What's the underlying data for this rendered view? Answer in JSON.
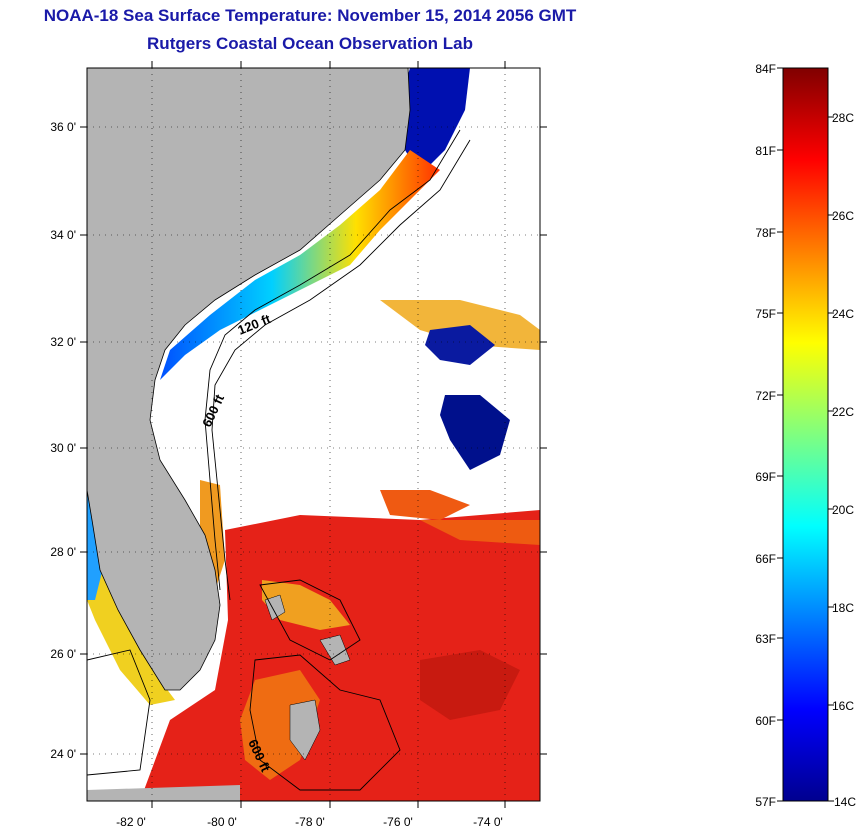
{
  "title": "NOAA-18 Sea Surface Temperature:  November 15, 2014 2056 GMT",
  "subtitle": "Rutgers Coastal Ocean Observation Lab",
  "map": {
    "lat_ticks": [
      "36 0'",
      "34 0'",
      "32 0'",
      "30 0'",
      "28 0'",
      "26 0'",
      "24 0'"
    ],
    "lon_ticks": [
      "-82 0'",
      "-80 0'",
      "-78 0'",
      "-76 0'",
      "-74 0'"
    ],
    "contour_labels": [
      "120 ft",
      "600 ft",
      "600 ft"
    ],
    "colors": {
      "land": "#b4b4b4",
      "ocean_cloud": "#ffffff",
      "cold": "#00008f",
      "warm": "#e0201a"
    }
  },
  "colorbar": {
    "fahrenheit_labels": [
      "84F",
      "81F",
      "78F",
      "75F",
      "72F",
      "69F",
      "66F",
      "63F",
      "60F",
      "57F"
    ],
    "celsius_labels": [
      "28C",
      "26C",
      "24C",
      "22C",
      "20C",
      "18C",
      "16C",
      "14C"
    ],
    "range_f": [
      57,
      84
    ],
    "range_c": [
      14,
      29
    ],
    "colormap": "jet"
  }
}
